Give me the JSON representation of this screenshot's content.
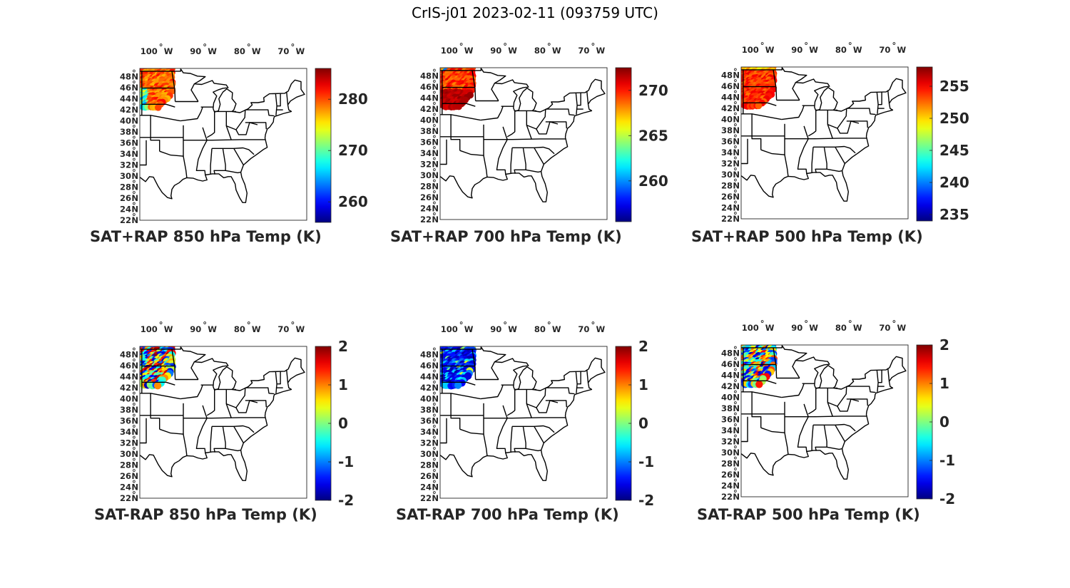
{
  "title": "CrIS-j01 2023-02-11 (093759 UTC)",
  "lat_labels": [
    "48",
    "46",
    "44",
    "42",
    "40",
    "38",
    "36",
    "34",
    "32",
    "30",
    "28",
    "26",
    "24",
    "22"
  ],
  "lat_suffix": "N",
  "lon_labels": [
    "100",
    "90",
    "80",
    "70"
  ],
  "lon_suffix": "W",
  "degree_symbol": "°",
  "panels": [
    {
      "caption": "SAT+RAP 850 hPa Temp (K)",
      "colorbar": {
        "min": 256,
        "max": 286,
        "ticks": [
          "260",
          "270",
          "280"
        ],
        "tick_values": [
          260,
          270,
          280
        ]
      },
      "field": "850-full"
    },
    {
      "caption": "SAT+RAP 700 hPa Temp (K)",
      "colorbar": {
        "min": 255.5,
        "max": 272.5,
        "ticks": [
          "260",
          "265",
          "270"
        ],
        "tick_values": [
          260,
          265,
          270
        ]
      },
      "field": "700-full"
    },
    {
      "caption": "SAT+RAP 500 hPa Temp (K)",
      "colorbar": {
        "min": 234,
        "max": 258,
        "ticks": [
          "235",
          "240",
          "245",
          "250",
          "255"
        ],
        "tick_values": [
          235,
          240,
          245,
          250,
          255
        ]
      },
      "field": "500-full"
    },
    {
      "caption": "SAT-RAP 850 hPa Temp (K)",
      "colorbar": {
        "min": -2,
        "max": 2,
        "ticks": [
          "-2",
          "-1",
          "0",
          "1",
          "2"
        ],
        "tick_values": [
          -2,
          -1,
          0,
          1,
          2
        ]
      },
      "field": "850-diff"
    },
    {
      "caption": "SAT-RAP 700 hPa Temp (K)",
      "colorbar": {
        "min": -2,
        "max": 2,
        "ticks": [
          "-2",
          "-1",
          "0",
          "1",
          "2"
        ],
        "tick_values": [
          -2,
          -1,
          0,
          1,
          2
        ]
      },
      "field": "700-diff"
    },
    {
      "caption": "SAT-RAP 500 hPa Temp (K)",
      "colorbar": {
        "min": -2,
        "max": 2,
        "ticks": [
          "-2",
          "-1",
          "0",
          "1",
          "2"
        ],
        "tick_values": [
          -2,
          -1,
          0,
          1,
          2
        ]
      },
      "field": "500-diff"
    }
  ],
  "colors": {
    "colormap": "jet",
    "outline": "#000000"
  }
}
